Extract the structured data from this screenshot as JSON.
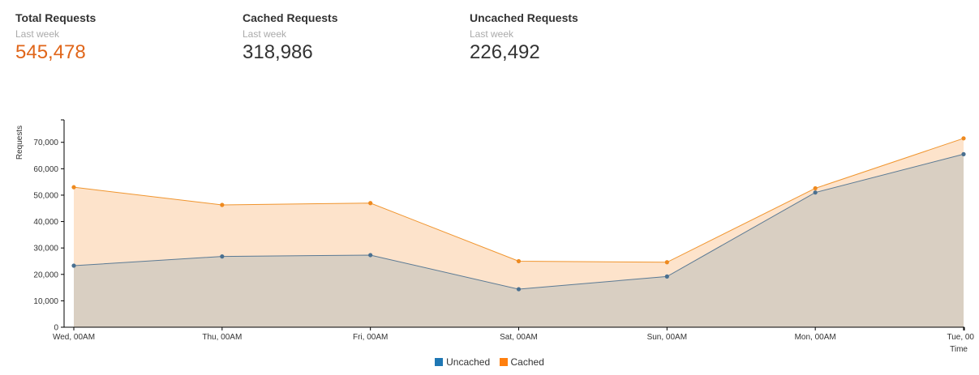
{
  "stats": [
    {
      "title": "Total Requests",
      "subtitle": "Last week",
      "value": "545,478",
      "accent": true
    },
    {
      "title": "Cached Requests",
      "subtitle": "Last week",
      "value": "318,986",
      "accent": false
    },
    {
      "title": "Uncached Requests",
      "subtitle": "Last week",
      "value": "226,492",
      "accent": false
    }
  ],
  "colors": {
    "uncached_area": "#d9cfc2",
    "uncached_line": "#5b7a94",
    "uncached_point": "#4a7090",
    "cached_area": "#fde3cb",
    "cached_line": "#f0952e",
    "cached_point": "#ee8a1f",
    "legend_uncached": "#1f77b4",
    "legend_cached": "#ff7f0e",
    "accent": "#e0661a"
  },
  "chart_data": {
    "type": "area",
    "stacked": true,
    "categories": [
      "Wed, 00AM",
      "Thu, 00AM",
      "Fri, 00AM",
      "Sat, 00AM",
      "Sun, 00AM",
      "Mon, 00AM",
      "Tue, 00"
    ],
    "series": [
      {
        "name": "Uncached",
        "values": [
          23300,
          26800,
          27300,
          14400,
          19200,
          51000,
          65500
        ]
      },
      {
        "name": "Cached",
        "values": [
          29700,
          19500,
          19700,
          10600,
          5400,
          1600,
          6000
        ]
      }
    ],
    "ylim": [
      0,
      78500
    ],
    "yticks": [
      0,
      10000,
      20000,
      30000,
      40000,
      50000,
      60000,
      70000
    ],
    "ytick_labels": [
      "0",
      "10,000",
      "20,000",
      "30,000",
      "40,000",
      "50,000",
      "60,000",
      "70,000"
    ],
    "xlabel": "Time",
    "ylabel": "Requests",
    "legend": [
      "Uncached",
      "Cached"
    ],
    "legend_position": "bottom-center",
    "grid": false
  }
}
